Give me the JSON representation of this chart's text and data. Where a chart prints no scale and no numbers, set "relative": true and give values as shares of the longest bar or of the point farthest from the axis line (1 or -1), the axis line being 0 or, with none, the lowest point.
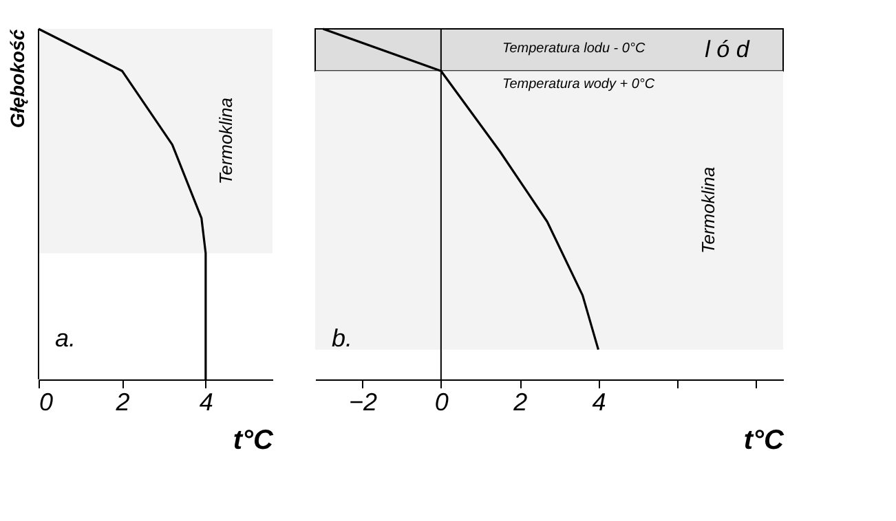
{
  "chart_data": [
    {
      "type": "line",
      "relative": true,
      "tick_labels": "x",
      "xlabel": "t°C",
      "ylabel": "Głębokość",
      "x": [
        0,
        2,
        3.2,
        3.9,
        4,
        4
      ],
      "series": [
        {
          "color": "#000000",
          "values": [
            1,
            0.88,
            0.67,
            0.46,
            0.36,
            0
          ]
        }
      ],
      "xlim": [
        0,
        5.6
      ],
      "xticks": [
        0,
        2,
        4
      ],
      "ref_lines": [
        {
          "axis": "x",
          "value": 0
        }
      ],
      "bands": [
        {
          "axis": "y",
          "from": 0.36,
          "to": 1,
          "label": "Termoklina"
        }
      ],
      "annotations": [
        "a."
      ]
    },
    {
      "type": "line",
      "relative": true,
      "tick_labels": "x",
      "xlabel": "t°C",
      "x": [
        -3,
        0,
        1.5,
        2.7,
        3.6,
        4
      ],
      "series": [
        {
          "color": "#000000",
          "values": [
            1,
            0.88,
            0.65,
            0.45,
            0.24,
            0.085
          ]
        }
      ],
      "xlim": [
        -3.2,
        8.7
      ],
      "xticks": [
        -2,
        0,
        2,
        4,
        {
          "value": 6,
          "label": null
        },
        {
          "value": 8,
          "label": null
        }
      ],
      "ref_lines": [
        {
          "axis": "x",
          "value": 0
        }
      ],
      "bands": [
        {
          "axis": "y",
          "from": 0.88,
          "to": 1,
          "label": "l ó d",
          "color": "#dddddd"
        },
        {
          "axis": "y",
          "from": 0.085,
          "to": 0.88,
          "label": "Termoklina"
        }
      ],
      "annotations": [
        "b.",
        "Temperatura lodu - 0°C",
        "Temperatura wody + 0°C"
      ]
    }
  ]
}
